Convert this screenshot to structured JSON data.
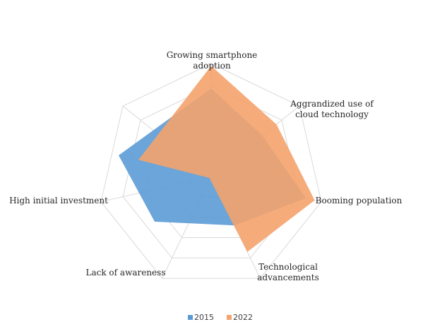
{
  "chart_data": {
    "type": "radar",
    "title": "",
    "categories": [
      "Growing smartphone adoption",
      "Aggrandized use of cloud technology",
      "Booming population",
      "Technological advancements",
      "Lack of awareness",
      "High initial investment"
    ],
    "category_lines": [
      [
        "Growing smartphone",
        "adoption"
      ],
      [
        "Aggrandized use of",
        "cloud technology"
      ],
      [
        "Booming population"
      ],
      [
        "Technological",
        "advancements"
      ],
      [
        "Lack of awareness"
      ],
      [
        "High initial investment"
      ]
    ],
    "rlim": [
      0,
      5
    ],
    "grid": true,
    "series": [
      {
        "name": "2015",
        "color": "#5B9BD5",
        "values": [
          3.9,
          2.9,
          4.3,
          2.4,
          3.2,
          4.2
        ]
      },
      {
        "name": "2022",
        "color": "#F4A36C",
        "values": [
          4.9,
          3.7,
          4.7,
          3.7,
          0.1,
          3.3
        ]
      }
    ],
    "legend_position": "bottom"
  }
}
